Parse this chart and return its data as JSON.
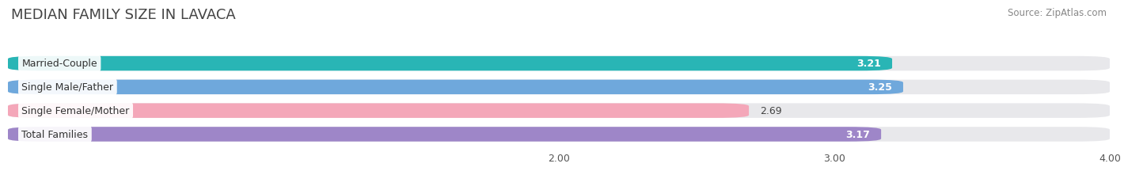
{
  "title": "MEDIAN FAMILY SIZE IN LAVACA",
  "source": "Source: ZipAtlas.com",
  "categories": [
    "Married-Couple",
    "Single Male/Father",
    "Single Female/Mother",
    "Total Families"
  ],
  "values": [
    3.21,
    3.25,
    2.69,
    3.17
  ],
  "bar_colors": [
    "#29b5b5",
    "#6fa8dc",
    "#f4a7b9",
    "#9e86c8"
  ],
  "xlim_left": 0.0,
  "xlim_right": 4.0,
  "xstart": 0.0,
  "xticks": [
    2.0,
    3.0,
    4.0
  ],
  "xtick_labels": [
    "2.00",
    "3.00",
    "4.00"
  ],
  "bar_height": 0.62,
  "background_color": "#ffffff",
  "bar_bg_color": "#e8e8eb",
  "title_fontsize": 13,
  "label_fontsize": 9,
  "value_fontsize": 9,
  "source_fontsize": 8.5,
  "value_inside_threshold": 3.05
}
